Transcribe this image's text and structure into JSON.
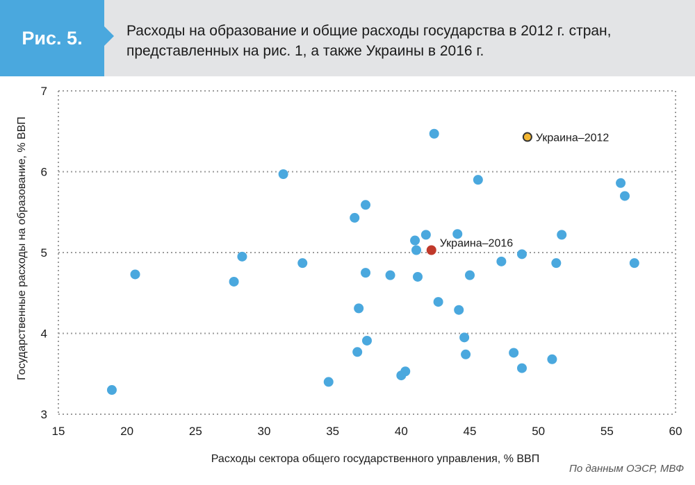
{
  "header": {
    "figure_label": "Рис. 5.",
    "title_line1": "Расходы на образование и общие расходы государства в 2012 г. стран,",
    "title_line2": "представленных на рис. 1, а также Украины в 2016 г."
  },
  "source": "По данным ОЭСР, МВФ",
  "colors": {
    "header_bg": "#e3e4e6",
    "badge": "#4aa8de",
    "points": "#4aa8de",
    "ukraine_2012": "#f2b632",
    "ukraine_2016": "#c0392b",
    "grid": "#9a9a9a"
  },
  "chart_data": {
    "type": "scatter",
    "xlabel": "Расходы сектора общего государственного управления, % ВВП",
    "ylabel": "Государственные расходы на образование, % ВВП",
    "xlim": [
      15,
      60
    ],
    "ylim": [
      3,
      7
    ],
    "xticks": [
      "15",
      "20",
      "25",
      "30",
      "35",
      "40",
      "45",
      "50",
      "55",
      "60"
    ],
    "yticks": [
      "3",
      "4",
      "5",
      "6",
      "7"
    ],
    "grid": "horizontal dotted",
    "series": [
      {
        "points": [
          [
            18.9,
            3.3
          ],
          [
            20.6,
            4.73
          ],
          [
            27.8,
            4.64
          ],
          [
            28.4,
            4.95
          ],
          [
            31.4,
            5.97
          ],
          [
            32.8,
            4.87
          ],
          [
            34.7,
            3.4
          ],
          [
            36.6,
            5.43
          ],
          [
            36.8,
            3.77
          ],
          [
            36.9,
            4.31
          ],
          [
            37.4,
            5.59
          ],
          [
            37.4,
            4.75
          ],
          [
            37.5,
            3.91
          ],
          [
            39.2,
            4.72
          ],
          [
            40.0,
            3.48
          ],
          [
            40.3,
            3.53
          ],
          [
            41.0,
            5.15
          ],
          [
            41.1,
            5.03
          ],
          [
            41.2,
            4.7
          ],
          [
            41.8,
            5.22
          ],
          [
            42.4,
            6.47
          ],
          [
            42.7,
            4.39
          ],
          [
            44.1,
            5.23
          ],
          [
            44.2,
            4.29
          ],
          [
            44.6,
            3.95
          ],
          [
            44.7,
            3.74
          ],
          [
            45.0,
            4.72
          ],
          [
            45.6,
            5.9
          ],
          [
            47.3,
            4.89
          ],
          [
            48.2,
            3.76
          ],
          [
            48.8,
            3.57
          ],
          [
            48.8,
            4.98
          ],
          [
            51.0,
            3.68
          ],
          [
            51.3,
            4.87
          ],
          [
            51.7,
            5.22
          ],
          [
            56.0,
            5.86
          ],
          [
            56.3,
            5.7
          ],
          [
            57.0,
            4.87
          ]
        ]
      },
      {
        "name": "Украина–2012",
        "points": [
          [
            49.2,
            6.43
          ]
        ]
      },
      {
        "name": "Украина–2016",
        "points": [
          [
            42.2,
            5.03
          ]
        ]
      }
    ]
  }
}
